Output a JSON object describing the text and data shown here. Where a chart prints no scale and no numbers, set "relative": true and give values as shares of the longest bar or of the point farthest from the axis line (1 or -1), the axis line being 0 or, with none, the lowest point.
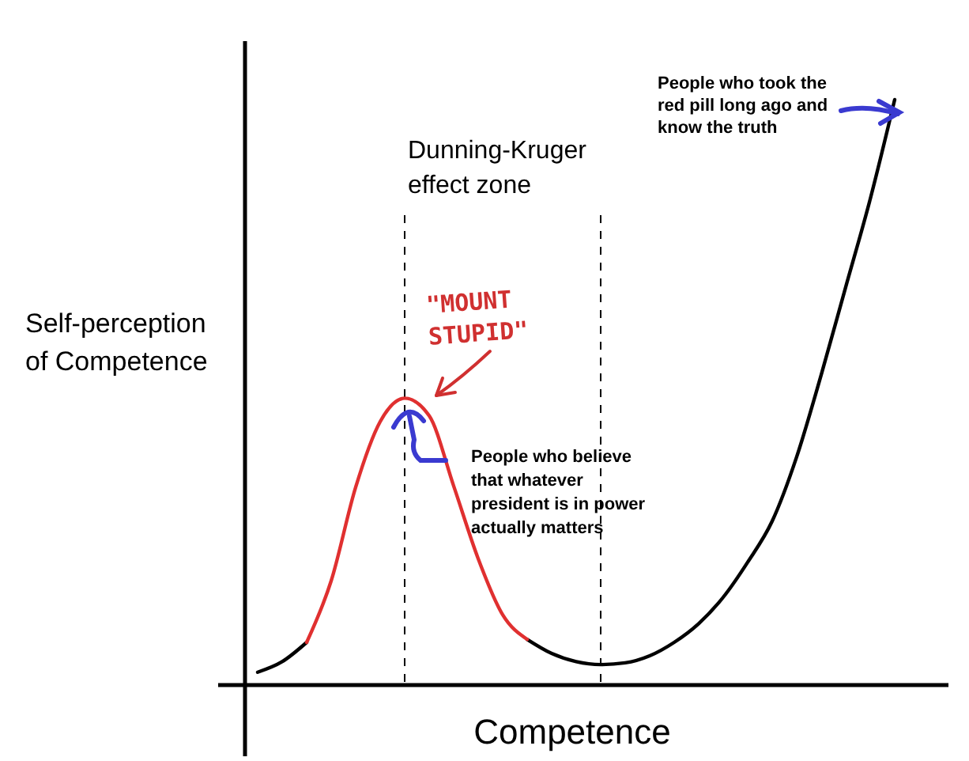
{
  "chart_data": {
    "type": "line",
    "relative": true,
    "xlabel": "Competence",
    "ylabel": "Self-perception of Competence",
    "categories": [
      null,
      null,
      null,
      null,
      null,
      null,
      null,
      null,
      null,
      null,
      null,
      null,
      null,
      null,
      null,
      null,
      null,
      null,
      null,
      null,
      null,
      null,
      null,
      null,
      null,
      null,
      null
    ],
    "series": [
      {
        "color": "#000000",
        "values": [
          0.022,
          0.04,
          0.073,
          null,
          null,
          null,
          null,
          null,
          null,
          null,
          null,
          0.078,
          0.054,
          0.04,
          0.035,
          0.038,
          0.05,
          0.073,
          0.105,
          0.15,
          0.21,
          0.28,
          0.39,
          0.53,
          0.68,
          0.83,
          1
        ]
      },
      {
        "color": "#e03030",
        "values": [
          null,
          null,
          0.073,
          0.178,
          0.338,
          0.45,
          0.49,
          0.46,
          0.34,
          0.216,
          0.12,
          0.078,
          null,
          null,
          null,
          null,
          null,
          null,
          null,
          null,
          null,
          null,
          null,
          null,
          null,
          null,
          null
        ]
      }
    ],
    "annotations": [
      "Dunning-Kruger effect zone",
      "\"MOUNT STUPID\"",
      "People who believe that whatever president is in power actually matters",
      "People who took the red pill long ago and know the truth"
    ]
  }
}
